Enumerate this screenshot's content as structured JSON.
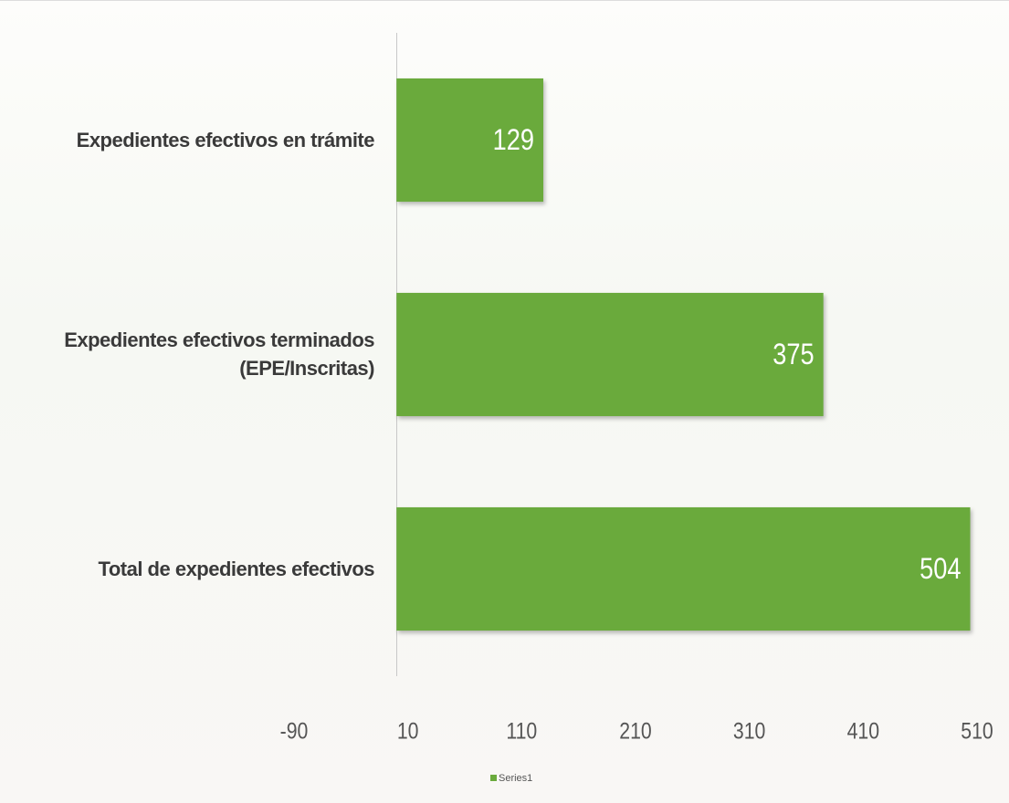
{
  "chart_data": {
    "type": "hbar",
    "categories": [
      "Expedientes efectivos en trámite",
      "Expedientes efectivos terminados (EPE/Inscritas)",
      "Total de expedientes efectivos"
    ],
    "series": [
      {
        "name": "Series1",
        "color": "#6aaa3c",
        "values": [
          129,
          375,
          504
        ]
      }
    ],
    "xlim": [
      -90,
      510
    ],
    "xticks": [
      -90,
      10,
      110,
      210,
      310,
      410,
      510
    ]
  }
}
